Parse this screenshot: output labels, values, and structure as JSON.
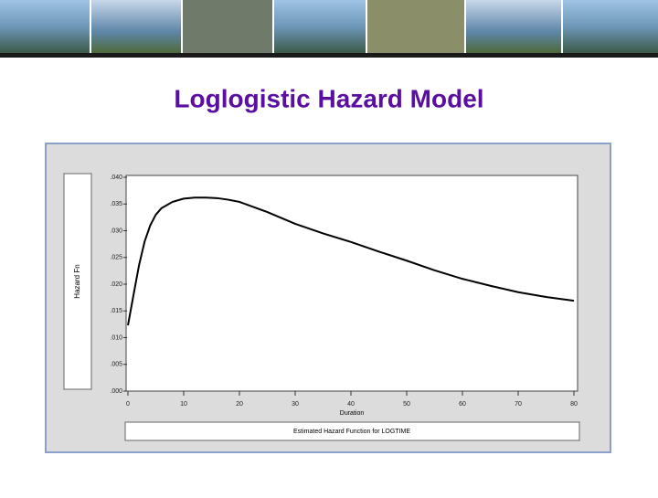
{
  "slide_title": "Loglogistic Hazard Model",
  "chart_data": {
    "type": "line",
    "title": "Estimated Hazard Function for LOGTIME",
    "x_label": "Duration",
    "y_label": "Hazard Fn",
    "x": [
      0,
      1,
      2,
      3,
      4,
      5,
      6,
      8,
      10,
      12,
      14,
      16,
      18,
      20,
      25,
      30,
      35,
      40,
      45,
      50,
      55,
      60,
      65,
      70,
      75,
      80
    ],
    "series": [
      {
        "color": "#000000",
        "values": [
          0.0123,
          0.018,
          0.0236,
          0.028,
          0.031,
          0.033,
          0.0342,
          0.0354,
          0.036,
          0.0362,
          0.0362,
          0.0361,
          0.0358,
          0.0354,
          0.0335,
          0.0313,
          0.0295,
          0.0279,
          0.0261,
          0.0244,
          0.0226,
          0.021,
          0.0197,
          0.0185,
          0.0176,
          0.0169
        ]
      }
    ],
    "xlim": [
      0,
      80
    ],
    "xticks": [
      0,
      10,
      20,
      30,
      40,
      50,
      60,
      70,
      80
    ],
    "ylim": [
      0,
      0.04
    ],
    "yticks": [
      {
        "value": 0,
        "label": ".000"
      },
      {
        "value": 0.005,
        "label": ".005"
      },
      {
        "value": 0.01,
        "label": ".010"
      },
      {
        "value": 0.015,
        "label": ".015"
      },
      {
        "value": 0.02,
        "label": ".020"
      },
      {
        "value": 0.025,
        "label": ".025"
      },
      {
        "value": 0.03,
        "label": ".030"
      },
      {
        "value": 0.035,
        "label": ".035"
      },
      {
        "value": 0.04,
        "label": ".040"
      }
    ],
    "grid": false
  }
}
